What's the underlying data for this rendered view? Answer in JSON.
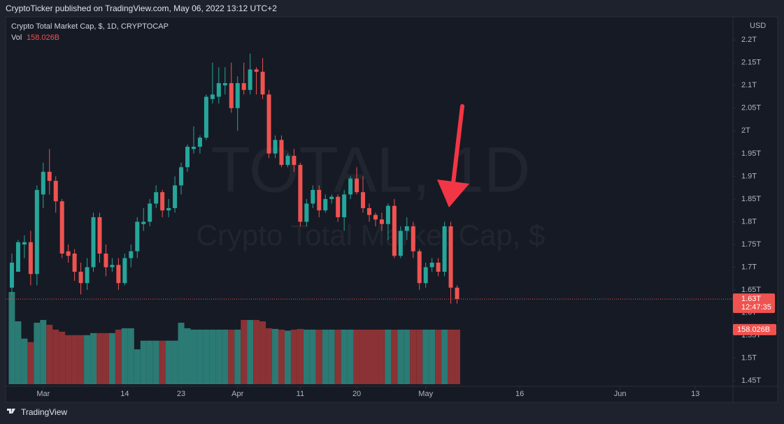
{
  "header": "CryptoTicker published on TradingView.com, May 06, 2022 13:12 UTC+2",
  "footer": "TradingView",
  "chart_data": {
    "type": "candlestick",
    "title": "Crypto Total Market Cap, $, 1D, CRYPTOCAP",
    "watermark": "TOTAL, 1D",
    "watermark_subtitle": "Crypto Total Market Cap, $",
    "currency": "USD",
    "up_color": "#26a69a",
    "down_color": "#ef5350",
    "up_volume_color": "#2b7a74",
    "down_volume_color": "#8b3235",
    "x": [
      "02-24",
      "02-25",
      "02-26",
      "02-27",
      "02-28",
      "03-01",
      "03-02",
      "03-03",
      "03-04",
      "03-05",
      "03-06",
      "03-07",
      "03-08",
      "03-09",
      "03-10",
      "03-11",
      "03-12",
      "03-13",
      "03-14",
      "03-15",
      "03-16",
      "03-17",
      "03-18",
      "03-19",
      "03-20",
      "03-21",
      "03-22",
      "03-23",
      "03-24",
      "03-25",
      "03-26",
      "03-27",
      "03-28",
      "03-29",
      "03-30",
      "03-31",
      "04-01",
      "04-02",
      "04-03",
      "04-04",
      "04-05",
      "04-06",
      "04-07",
      "04-08",
      "04-09",
      "04-10",
      "04-11",
      "04-12",
      "04-13",
      "04-14",
      "04-15",
      "04-16",
      "04-17",
      "04-18",
      "04-19",
      "04-20",
      "04-21",
      "04-22",
      "04-23",
      "04-24",
      "04-25",
      "04-26",
      "04-27",
      "04-28",
      "04-29",
      "04-30",
      "05-01",
      "05-02",
      "05-03",
      "05-04",
      "05-05",
      "05-06"
    ],
    "open": [
      1.655,
      1.69,
      1.75,
      1.755,
      1.685,
      1.86,
      1.91,
      1.89,
      1.845,
      1.735,
      1.73,
      1.69,
      1.665,
      1.7,
      1.81,
      1.73,
      1.7,
      1.705,
      1.665,
      1.72,
      1.735,
      1.795,
      1.8,
      1.84,
      1.865,
      1.825,
      1.83,
      1.88,
      1.92,
      1.96,
      1.965,
      1.985,
      2.07,
      2.075,
      2.1,
      2.105,
      2.05,
      2.105,
      2.09,
      2.135,
      2.13,
      2.08,
      1.95,
      1.98,
      1.925,
      1.945,
      1.925,
      1.8,
      1.84,
      1.87,
      1.825,
      1.85,
      1.855,
      1.81,
      1.86,
      1.895,
      1.865,
      1.83,
      1.815,
      1.805,
      1.795,
      1.835,
      1.725,
      1.78,
      1.79,
      1.735,
      1.665,
      1.7,
      1.71,
      1.69,
      1.79,
      1.655
    ],
    "high": [
      1.73,
      1.76,
      1.77,
      1.78,
      1.88,
      1.93,
      1.96,
      1.9,
      1.85,
      1.75,
      1.74,
      1.71,
      1.72,
      1.82,
      1.82,
      1.75,
      1.72,
      1.72,
      1.73,
      1.75,
      1.81,
      1.83,
      1.85,
      1.88,
      1.87,
      1.85,
      1.9,
      1.93,
      1.97,
      2.01,
      1.99,
      2.08,
      2.15,
      2.14,
      2.14,
      2.15,
      2.12,
      2.15,
      2.17,
      2.14,
      2.16,
      2.09,
      1.99,
      1.99,
      1.95,
      1.96,
      1.93,
      1.85,
      1.88,
      1.88,
      1.86,
      1.86,
      1.86,
      1.87,
      1.9,
      1.92,
      1.9,
      1.84,
      1.82,
      1.82,
      1.84,
      1.85,
      1.79,
      1.81,
      1.8,
      1.74,
      1.71,
      1.72,
      1.72,
      1.8,
      1.8,
      1.66
    ],
    "low": [
      1.64,
      1.69,
      1.72,
      1.66,
      1.66,
      1.83,
      1.86,
      1.82,
      1.72,
      1.71,
      1.67,
      1.64,
      1.65,
      1.69,
      1.71,
      1.68,
      1.69,
      1.65,
      1.66,
      1.7,
      1.72,
      1.78,
      1.79,
      1.83,
      1.81,
      1.81,
      1.82,
      1.86,
      1.91,
      1.95,
      1.95,
      1.98,
      2.06,
      2.06,
      2.08,
      2.04,
      2.0,
      2.08,
      2.08,
      2.08,
      2.07,
      1.94,
      1.94,
      1.92,
      1.92,
      1.91,
      1.79,
      1.79,
      1.83,
      1.81,
      1.82,
      1.84,
      1.8,
      1.78,
      1.85,
      1.86,
      1.82,
      1.8,
      1.79,
      1.78,
      1.76,
      1.72,
      1.72,
      1.76,
      1.72,
      1.65,
      1.655,
      1.69,
      1.68,
      1.68,
      1.62,
      1.62
    ],
    "close": [
      1.71,
      1.755,
      1.755,
      1.685,
      1.87,
      1.91,
      1.89,
      1.845,
      1.73,
      1.725,
      1.69,
      1.665,
      1.7,
      1.81,
      1.73,
      1.7,
      1.705,
      1.665,
      1.72,
      1.735,
      1.8,
      1.8,
      1.84,
      1.865,
      1.825,
      1.83,
      1.88,
      1.92,
      1.965,
      1.965,
      1.985,
      2.075,
      2.08,
      2.105,
      2.105,
      2.05,
      2.105,
      2.09,
      2.135,
      2.13,
      2.08,
      1.95,
      1.98,
      1.925,
      1.945,
      1.925,
      1.8,
      1.84,
      1.87,
      1.825,
      1.85,
      1.855,
      1.81,
      1.86,
      1.895,
      1.865,
      1.83,
      1.815,
      1.805,
      1.795,
      1.835,
      1.725,
      1.78,
      1.79,
      1.735,
      1.665,
      1.7,
      1.71,
      1.69,
      1.79,
      1.655,
      1.63
    ],
    "volume": {
      "name": "Vol",
      "values": [
        267,
        182,
        132,
        122,
        178,
        186,
        172,
        158,
        152,
        142,
        142,
        142,
        142,
        148,
        148,
        148,
        148,
        158,
        162,
        162,
        101,
        126,
        126,
        126,
        126,
        126,
        126,
        178,
        162,
        158,
        158,
        158,
        158,
        158,
        158,
        158,
        158,
        186,
        186,
        186,
        182,
        162,
        160,
        158,
        155,
        158,
        160,
        158,
        158,
        158,
        158,
        158,
        158,
        158,
        158,
        158,
        158,
        158,
        158,
        158,
        158,
        158,
        158,
        158,
        158,
        158,
        158,
        158,
        158,
        158,
        158,
        158.026
      ]
    },
    "last_labels": {
      "price": "1.63T",
      "countdown": "12:47:35",
      "volume": "158.026B"
    },
    "xlim": [
      "02-23",
      "06-19"
    ],
    "xticks": [
      {
        "value": "03-01",
        "label": "Mar"
      },
      {
        "value": "03-14",
        "label": "14"
      },
      {
        "value": "03-23",
        "label": "23"
      },
      {
        "value": "04-01",
        "label": "Apr"
      },
      {
        "value": "04-11",
        "label": "11"
      },
      {
        "value": "04-20",
        "label": "20"
      },
      {
        "value": "05-01",
        "label": "May"
      },
      {
        "value": "05-16",
        "label": "16"
      },
      {
        "value": "06-01",
        "label": "Jun"
      },
      {
        "value": "06-13",
        "label": "13"
      }
    ],
    "ylim": [
      1.438,
      2.251
    ],
    "yticks": [
      {
        "value": 1.45,
        "label": "1.45T"
      },
      {
        "value": 1.5,
        "label": "1.5T"
      },
      {
        "value": 1.55,
        "label": "1.55T"
      },
      {
        "value": 1.6,
        "label": "1.6T"
      },
      {
        "value": 1.65,
        "label": "1.65T"
      },
      {
        "value": 1.7,
        "label": "1.7T"
      },
      {
        "value": 1.75,
        "label": "1.75T"
      },
      {
        "value": 1.8,
        "label": "1.8T"
      },
      {
        "value": 1.85,
        "label": "1.85T"
      },
      {
        "value": 1.9,
        "label": "1.9T"
      },
      {
        "value": 1.95,
        "label": "1.95T"
      },
      {
        "value": 2,
        "label": "2T"
      },
      {
        "value": 2.05,
        "label": "2.05T"
      },
      {
        "value": 2.1,
        "label": "2.1T"
      },
      {
        "value": 2.15,
        "label": "2.15T"
      },
      {
        "value": 2.2,
        "label": "2.2T"
      }
    ],
    "grid": false
  }
}
